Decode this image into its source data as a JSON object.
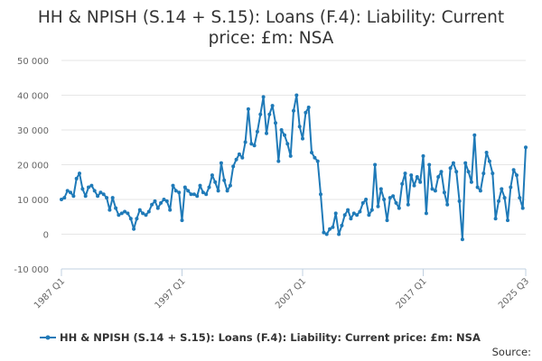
{
  "chart_data": {
    "type": "line",
    "title": "HH & NPISH (S.14 + S.15): Loans (F.4): Liability: Current price: £m: NSA",
    "xlabel": "",
    "ylabel": "",
    "ylim": [
      -10000,
      50000
    ],
    "y_ticks": [
      -10000,
      0,
      10000,
      20000,
      30000,
      40000,
      50000
    ],
    "y_tick_labels": [
      "-10 000",
      "0",
      "10 000",
      "20 000",
      "30 000",
      "40 000",
      "50 000"
    ],
    "x_ticks": [
      "1987 Q1",
      "1997 Q1",
      "2007 Q1",
      "2017 Q1",
      "2025 Q3"
    ],
    "grid": "horizontal",
    "legend_position": "bottom",
    "line_color": "#1f7ab8",
    "series": [
      {
        "name": "HH & NPISH (S.14 + S.15): Loans (F.4): Liability: Current price: £m: NSA",
        "x_start": "1987 Q1",
        "x_end": "2025 Q3",
        "values": [
          10000,
          10500,
          12500,
          12000,
          11000,
          16000,
          17500,
          13000,
          11000,
          13500,
          14000,
          12500,
          11000,
          12000,
          11500,
          10500,
          7000,
          10500,
          7500,
          5500,
          6000,
          6500,
          6000,
          4500,
          1500,
          4500,
          7000,
          6000,
          5500,
          6500,
          8500,
          9500,
          7500,
          9000,
          10000,
          9500,
          7000,
          14000,
          12500,
          12000,
          4000,
          13500,
          12500,
          11500,
          11500,
          11000,
          14000,
          12000,
          11500,
          13500,
          17000,
          15000,
          12500,
          20500,
          15500,
          12500,
          14000,
          19500,
          21500,
          23000,
          22000,
          26500,
          36000,
          26000,
          25500,
          29500,
          34500,
          39500,
          29000,
          34500,
          37000,
          32000,
          21000,
          30000,
          28500,
          26000,
          22500,
          35500,
          40000,
          31000,
          27500,
          35000,
          36500,
          23500,
          22000,
          21000,
          11500,
          500,
          0,
          1500,
          2000,
          6000,
          0,
          2500,
          5500,
          7000,
          4500,
          6000,
          5500,
          6500,
          9000,
          10000,
          5500,
          7000,
          20000,
          8000,
          13000,
          10000,
          4000,
          10500,
          11000,
          9000,
          7500,
          14500,
          17500,
          8500,
          17000,
          14000,
          16500,
          15000,
          22500,
          6000,
          20000,
          13000,
          12500,
          16500,
          18000,
          12000,
          8500,
          19000,
          20500,
          18000,
          9500,
          -1500,
          20500,
          18000,
          15000,
          28500,
          13500,
          12500,
          17500,
          23500,
          21000,
          17500,
          4500,
          9500,
          13000,
          10500,
          4000,
          13500,
          18500,
          17000,
          10500,
          7500,
          25000
        ]
      }
    ]
  },
  "legend": {
    "label": "HH & NPISH (S.14 + S.15): Loans (F.4): Liability: Current price: £m: NSA"
  },
  "source_label": "Source:"
}
